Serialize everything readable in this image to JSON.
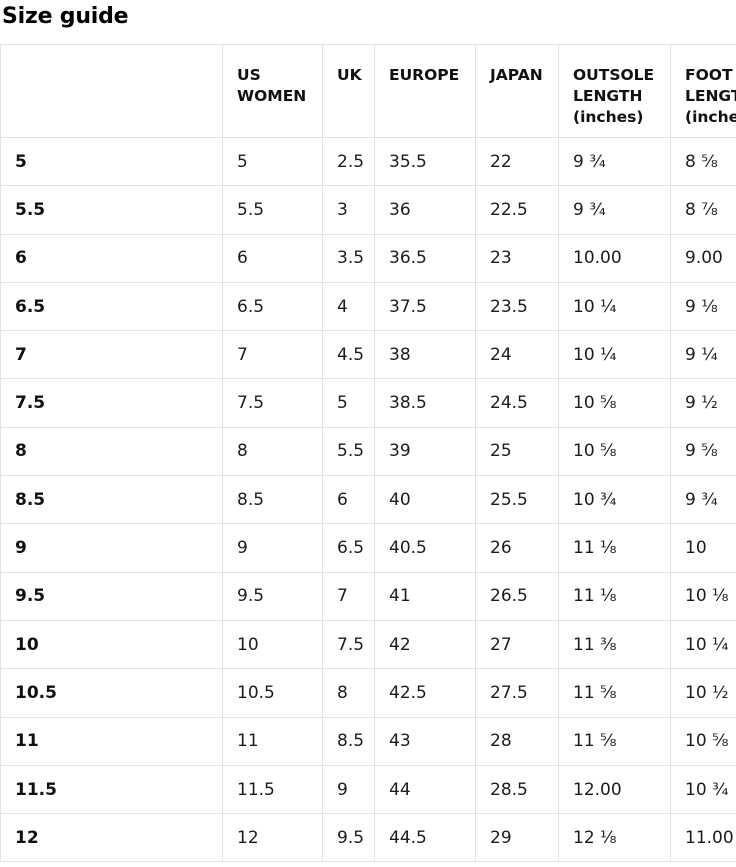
{
  "page": {
    "title": "Size guide"
  },
  "table": {
    "columns": [
      {
        "key": "size",
        "label": ""
      },
      {
        "key": "us-women",
        "label": "US WOMEN"
      },
      {
        "key": "uk",
        "label": "UK"
      },
      {
        "key": "europe",
        "label": "EUROPE"
      },
      {
        "key": "japan",
        "label": "JAPAN"
      },
      {
        "key": "outsole-length",
        "label": "OUTSOLE LENGTH (inches)"
      },
      {
        "key": "foot-length",
        "label": "FOOT LENGTH (inches)"
      }
    ],
    "rows": [
      [
        "5",
        "5",
        "2.5",
        "35.5",
        "22",
        "9 ¾",
        "8 ⅝"
      ],
      [
        "5.5",
        "5.5",
        "3",
        "36",
        "22.5",
        "9 ¾",
        "8 ⅞"
      ],
      [
        "6",
        "6",
        "3.5",
        "36.5",
        "23",
        "10.00",
        "9.00"
      ],
      [
        "6.5",
        "6.5",
        "4",
        "37.5",
        "23.5",
        "10 ¼",
        "9 ⅛"
      ],
      [
        "7",
        "7",
        "4.5",
        "38",
        "24",
        "10 ¼",
        "9 ¼"
      ],
      [
        "7.5",
        "7.5",
        "5",
        "38.5",
        "24.5",
        "10 ⅝",
        "9 ½"
      ],
      [
        "8",
        "8",
        "5.5",
        "39",
        "25",
        "10 ⅝",
        "9 ⅝"
      ],
      [
        "8.5",
        "8.5",
        "6",
        "40",
        "25.5",
        "10 ¾",
        "9 ¾"
      ],
      [
        "9",
        "9",
        "6.5",
        "40.5",
        "26",
        "11 ⅛",
        "10"
      ],
      [
        "9.5",
        "9.5",
        "7",
        "41",
        "26.5",
        "11 ⅛",
        "10 ⅛"
      ],
      [
        "10",
        "10",
        "7.5",
        "42",
        "27",
        "11 ⅜",
        "10 ¼"
      ],
      [
        "10.5",
        "10.5",
        "8",
        "42.5",
        "27.5",
        "11 ⅝",
        "10 ½"
      ],
      [
        "11",
        "11",
        "8.5",
        "43",
        "28",
        "11 ⅝",
        "10 ⅝"
      ],
      [
        "11.5",
        "11.5",
        "9",
        "44",
        "28.5",
        "12.00",
        "10 ¾"
      ],
      [
        "12",
        "12",
        "9.5",
        "44.5",
        "29",
        "12 ⅛",
        "11.00"
      ]
    ]
  }
}
